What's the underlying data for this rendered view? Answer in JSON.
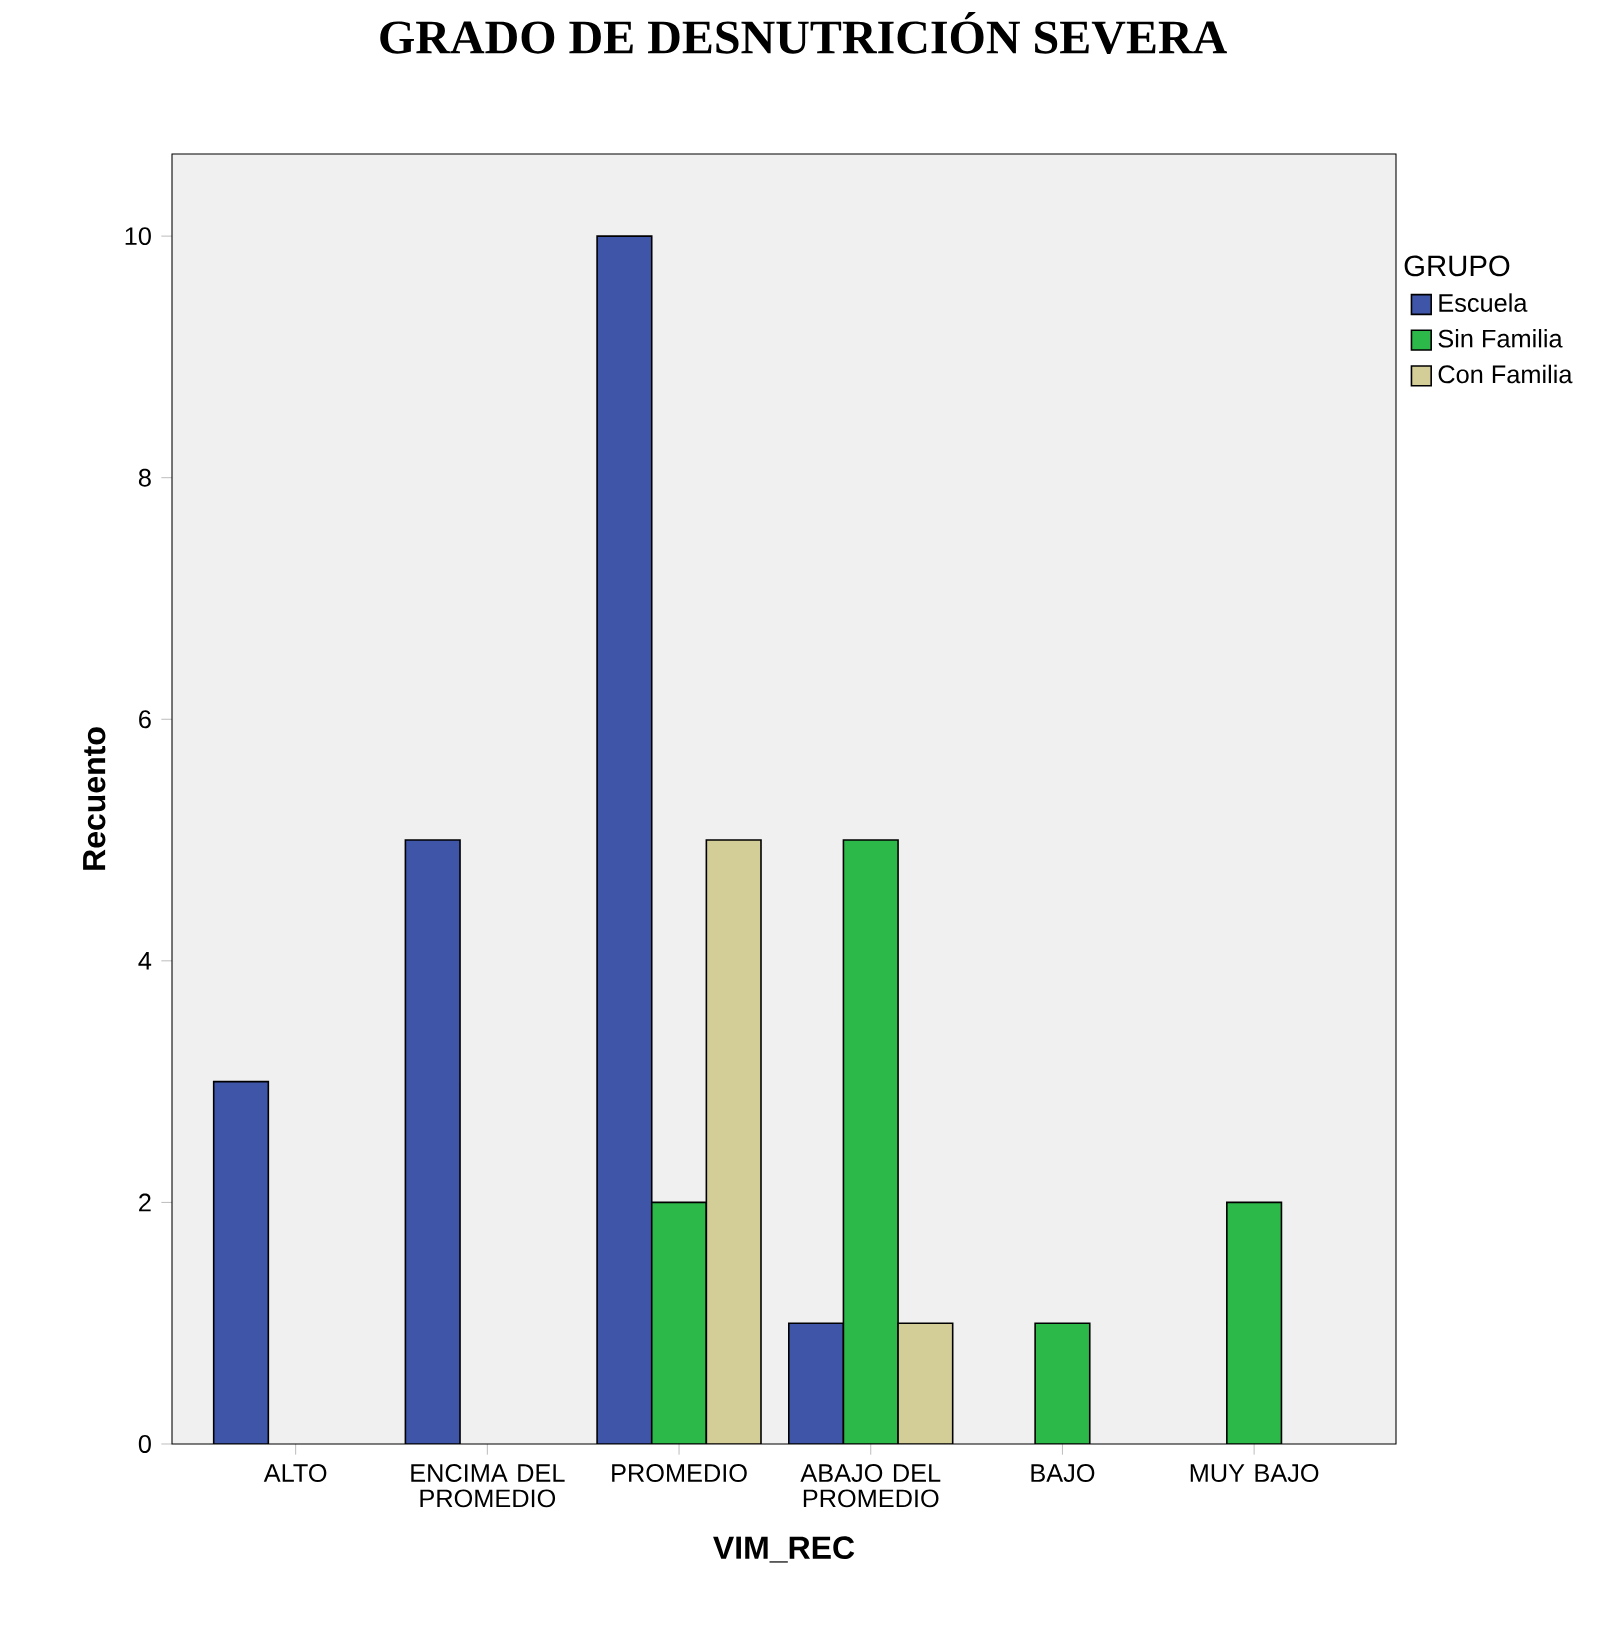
{
  "chart_data": {
    "type": "bar",
    "title": "GRADO DE DESNUTRICIÓN SEVERA",
    "xlabel": "VIM_REC",
    "ylabel": "Recuento",
    "legend_title": "GRUPO",
    "legend": "right",
    "categories": [
      "ALTO",
      "ENCIMA DEL PROMEDIO",
      "PROMEDIO",
      "ABAJO DEL PROMEDIO",
      "BAJO",
      "MUY BAJO"
    ],
    "series": [
      {
        "name": "Escuela",
        "color": "#3f55a8",
        "values": [
          3,
          5,
          10,
          1,
          null,
          null
        ]
      },
      {
        "name": "Sin Familia",
        "color": "#2db84a",
        "values": [
          null,
          null,
          2,
          5,
          1,
          2
        ]
      },
      {
        "name": "Con Familia",
        "color": "#d3cd97",
        "values": [
          null,
          null,
          5,
          1,
          null,
          null
        ]
      }
    ],
    "ylim": [
      0,
      10.68
    ],
    "yticks": [
      0,
      2,
      4,
      6,
      8,
      10
    ]
  }
}
